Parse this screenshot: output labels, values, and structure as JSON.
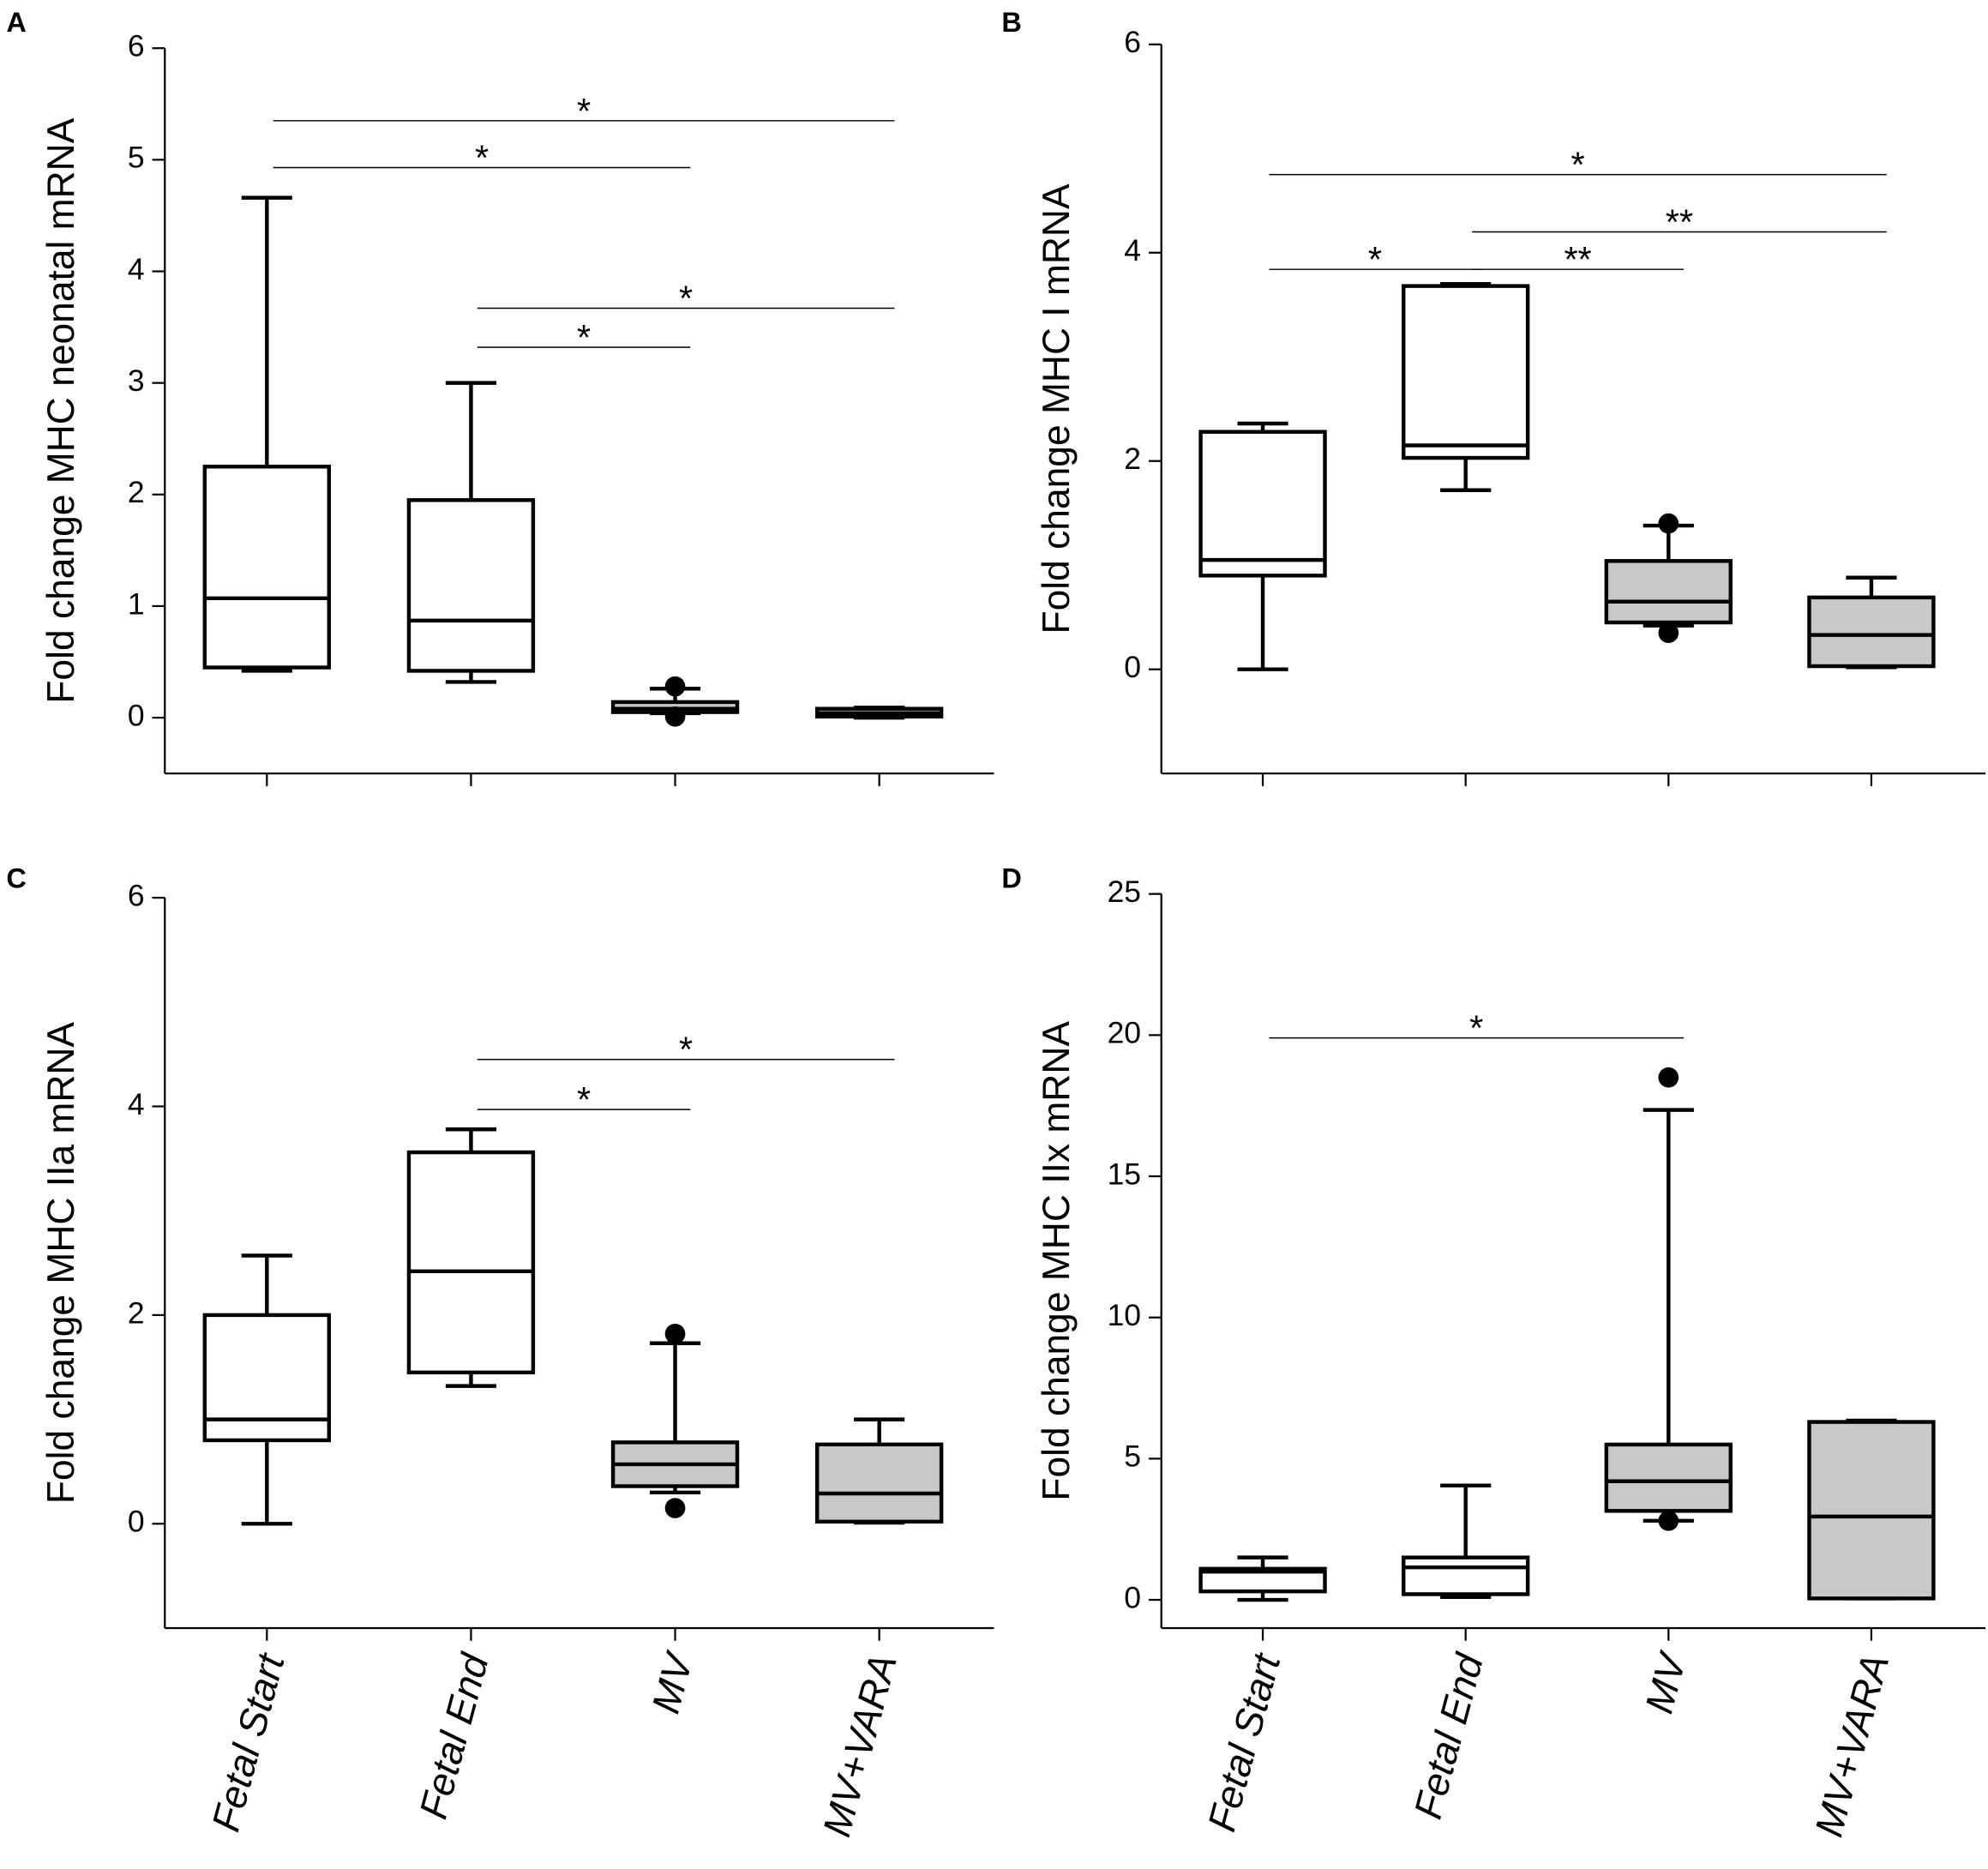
{
  "chart_data": [
    {
      "type": "box",
      "panel": "A",
      "ylabel": "Fold change MHC neonatal mRNA",
      "categories": [
        null,
        null,
        null,
        null
      ],
      "ylim": [
        -0.5,
        6
      ],
      "yticks": [
        0,
        1,
        2,
        3,
        4,
        5,
        6
      ],
      "colors": [
        "#ffffff",
        "#ffffff",
        "#c8c8c8",
        "#c8c8c8"
      ],
      "boxes": [
        {
          "whislo": 0.42,
          "q1": 0.45,
          "med": 1.07,
          "q3": 2.25,
          "whishi": 4.66,
          "fliers": []
        },
        {
          "whislo": 0.32,
          "q1": 0.42,
          "med": 0.87,
          "q3": 1.95,
          "whishi": 3.0,
          "fliers": []
        },
        {
          "whislo": 0.04,
          "q1": 0.05,
          "med": 0.08,
          "q3": 0.14,
          "whishi": 0.26,
          "fliers": [
            0.28,
            0.01
          ]
        },
        {
          "whislo": 0.0,
          "q1": 0.01,
          "med": 0.04,
          "q3": 0.08,
          "whishi": 0.09,
          "fliers": []
        }
      ],
      "comparisons": [
        {
          "from": 0,
          "to": 3,
          "y": 5.35,
          "label": "*"
        },
        {
          "from": 0,
          "to": 2,
          "y": 4.93,
          "label": "*"
        },
        {
          "from": 1,
          "to": 3,
          "y": 3.67,
          "label": "*"
        },
        {
          "from": 1,
          "to": 2,
          "y": 3.32,
          "label": "*"
        }
      ]
    },
    {
      "type": "box",
      "panel": "B",
      "ylabel": "Fold change MHC I mRNA",
      "categories": [
        null,
        null,
        null,
        null
      ],
      "ylim": [
        -1,
        6
      ],
      "yticks": [
        0,
        2,
        4,
        6
      ],
      "colors": [
        "#ffffff",
        "#ffffff",
        "#c8c8c8",
        "#c8c8c8"
      ],
      "boxes": [
        {
          "whislo": 0.0,
          "q1": 0.9,
          "med": 1.05,
          "q3": 2.28,
          "whishi": 2.36,
          "fliers": []
        },
        {
          "whislo": 1.72,
          "q1": 2.03,
          "med": 2.15,
          "q3": 3.68,
          "whishi": 3.7,
          "fliers": []
        },
        {
          "whislo": 0.42,
          "q1": 0.45,
          "med": 0.65,
          "q3": 1.04,
          "whishi": 1.38,
          "fliers": [
            1.4,
            0.35
          ]
        },
        {
          "whislo": 0.02,
          "q1": 0.03,
          "med": 0.33,
          "q3": 0.69,
          "whishi": 0.88,
          "fliers": []
        }
      ],
      "comparisons": [
        {
          "from": 0,
          "to": 3,
          "y": 4.75,
          "label": "*"
        },
        {
          "from": 1,
          "to": 3,
          "y": 4.2,
          "label": "**"
        },
        {
          "from": 0,
          "to": 1,
          "y": 3.84,
          "label": "*"
        },
        {
          "from": 1,
          "to": 2,
          "y": 3.84,
          "label": "**"
        }
      ]
    },
    {
      "type": "box",
      "panel": "C",
      "ylabel": "Fold change MHC IIa mRNA",
      "categories": [
        "Fetal Start",
        "Fetal End",
        "MV",
        "MV+VARA"
      ],
      "ylim": [
        -1,
        6
      ],
      "yticks": [
        0,
        2,
        4,
        6
      ],
      "colors": [
        "#ffffff",
        "#ffffff",
        "#c8c8c8",
        "#c8c8c8"
      ],
      "boxes": [
        {
          "whislo": 0.0,
          "q1": 0.8,
          "med": 1.0,
          "q3": 2.0,
          "whishi": 2.57,
          "fliers": []
        },
        {
          "whislo": 1.32,
          "q1": 1.45,
          "med": 2.42,
          "q3": 3.56,
          "whishi": 3.78,
          "fliers": []
        },
        {
          "whislo": 0.3,
          "q1": 0.36,
          "med": 0.57,
          "q3": 0.78,
          "whishi": 1.73,
          "fliers": [
            1.82,
            0.15
          ]
        },
        {
          "whislo": 0.01,
          "q1": 0.02,
          "med": 0.29,
          "q3": 0.76,
          "whishi": 1.0,
          "fliers": []
        }
      ],
      "comparisons": [
        {
          "from": 1,
          "to": 3,
          "y": 4.45,
          "label": "*"
        },
        {
          "from": 1,
          "to": 2,
          "y": 3.97,
          "label": "*"
        }
      ]
    },
    {
      "type": "box",
      "panel": "D",
      "ylabel": "Fold change MHC IIx mRNA",
      "categories": [
        "Fetal Start",
        "Fetal End",
        "MV",
        "MV+VARA"
      ],
      "ylim": [
        -1,
        25
      ],
      "yticks": [
        0,
        5,
        10,
        15,
        20,
        25
      ],
      "colors": [
        "#ffffff",
        "#ffffff",
        "#c8c8c8",
        "#c8c8c8"
      ],
      "boxes": [
        {
          "whislo": 0.0,
          "q1": 0.3,
          "med": 1.0,
          "q3": 1.1,
          "whishi": 1.5,
          "fliers": []
        },
        {
          "whislo": 0.1,
          "q1": 0.2,
          "med": 1.15,
          "q3": 1.5,
          "whishi": 4.05,
          "fliers": []
        },
        {
          "whislo": 2.8,
          "q1": 3.15,
          "med": 4.2,
          "q3": 5.5,
          "whishi": 17.35,
          "fliers": [
            18.5,
            2.8
          ]
        },
        {
          "whislo": 0.05,
          "q1": 0.05,
          "med": 2.95,
          "q3": 6.3,
          "whishi": 6.35,
          "fliers": []
        }
      ],
      "comparisons": [
        {
          "from": 0,
          "to": 2,
          "y": 19.9,
          "label": "*"
        }
      ]
    }
  ]
}
